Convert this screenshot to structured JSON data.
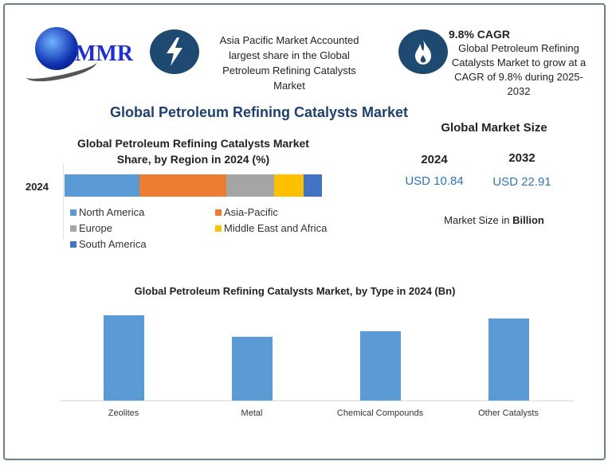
{
  "logo": {
    "text": "MMR"
  },
  "highlight1": {
    "icon": "lightning-icon",
    "text": "Asia Pacific Market Accounted largest share in the Global Petroleum  Refining Catalysts Market"
  },
  "highlight2": {
    "icon": "flame-icon",
    "title": "9.8% CAGR",
    "text": "Global Petroleum Refining Catalysts Market to grow at a CAGR of 9.8% during 2025-2032"
  },
  "main_title": "Global Petroleum Refining Catalysts Market",
  "market_size": {
    "title": "Global Market Size",
    "year1": "2024",
    "year2": "2032",
    "value1": "USD 10.84",
    "value2": "USD 22.91",
    "unit_prefix": "Market Size in ",
    "unit_bold": "Billion",
    "accent": "#2e75b6"
  },
  "chart_data": [
    {
      "type": "bar",
      "orientation": "horizontal",
      "stacked": true,
      "title": "Global Petroleum Refining Catalysts Market Share, by Region in 2024 (%)",
      "categories": [
        "2024"
      ],
      "series": [
        {
          "name": "North America",
          "values": [
            29
          ],
          "color": "#5b9bd5"
        },
        {
          "name": "Asia-Pacific",
          "values": [
            34
          ],
          "color": "#ed7d31"
        },
        {
          "name": "Europe",
          "values": [
            18.5
          ],
          "color": "#a5a5a5"
        },
        {
          "name": "Middle East and Africa",
          "values": [
            11.5
          ],
          "color": "#ffc000"
        },
        {
          "name": "South America",
          "values": [
            7
          ],
          "color": "#4472c4"
        }
      ],
      "legend": "bottom"
    },
    {
      "type": "bar",
      "title": "Global Petroleum Refining Catalysts Market, by Type  in 2024 (Bn)",
      "categories": [
        "Zeolites",
        "Metal",
        "Chemical Compounds",
        "Other Catalysts"
      ],
      "values": [
        3.08,
        2.3,
        2.5,
        2.96
      ],
      "color": "#5b9bd5",
      "grid": false
    }
  ]
}
